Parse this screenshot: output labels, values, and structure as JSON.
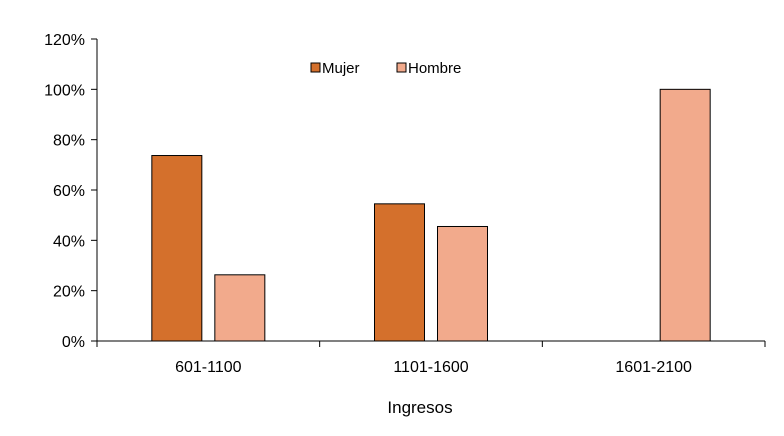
{
  "chart_data": {
    "type": "bar",
    "title": "",
    "xlabel": "Ingresos",
    "ylabel": "",
    "categories": [
      "601-1100",
      "1101-1600",
      "1601-2100"
    ],
    "series": [
      {
        "name": "Mujer",
        "color": "#D4702C",
        "values": [
          73.7,
          54.5,
          0
        ]
      },
      {
        "name": "Hombre",
        "color": "#F2AA8C",
        "values": [
          26.3,
          45.5,
          100
        ]
      }
    ],
    "ylim": [
      0,
      120
    ],
    "yticks": [
      0,
      20,
      40,
      60,
      80,
      100,
      120
    ],
    "ytick_labels": [
      "0%",
      "20%",
      "40%",
      "60%",
      "80%",
      "100%",
      "120%"
    ],
    "grid": false,
    "legend_position": "top-center"
  }
}
